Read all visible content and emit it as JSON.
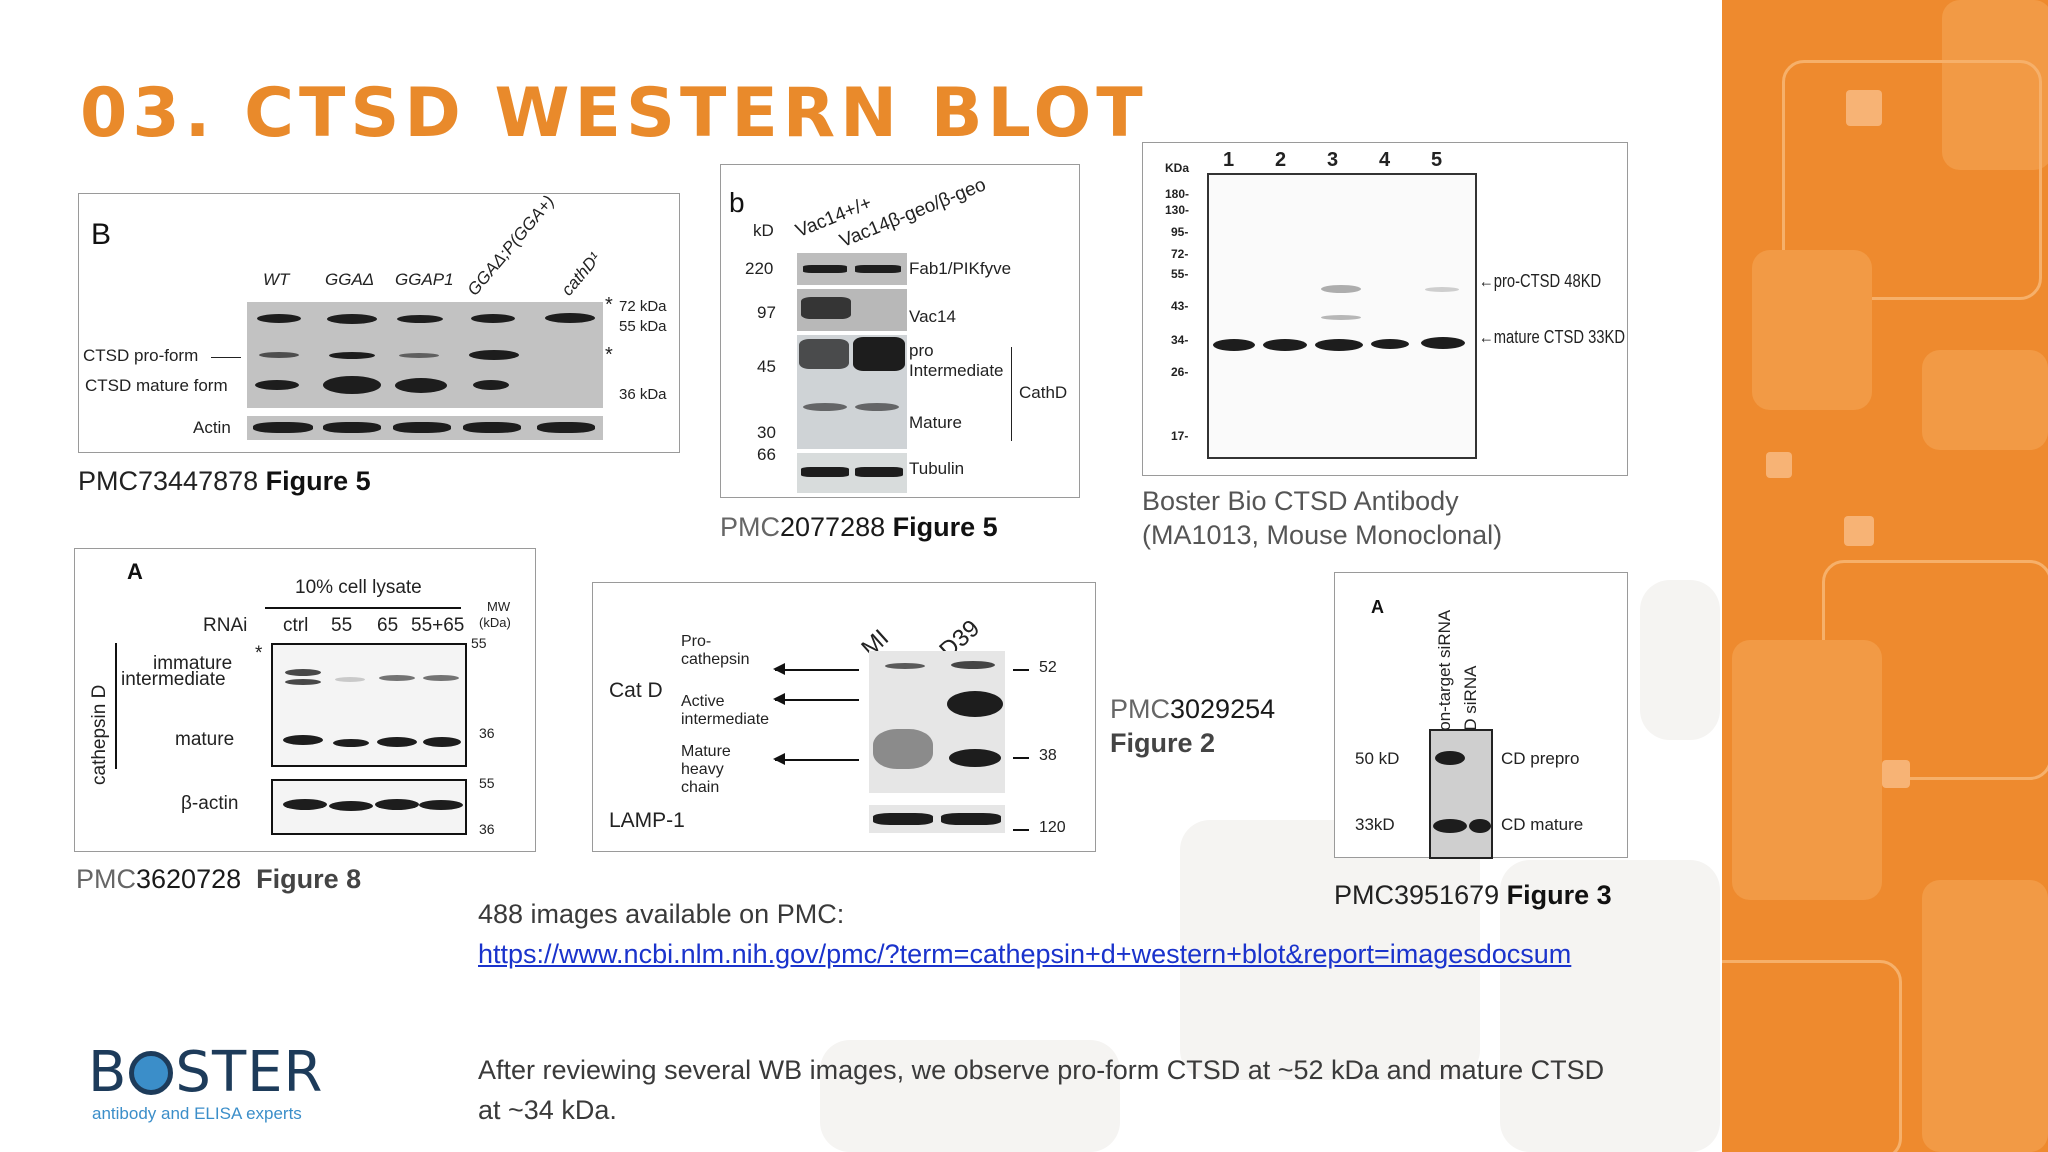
{
  "slide": {
    "title": "03. CTSD WESTERN BLOT",
    "logo_word_pre": "B",
    "logo_word_post": "STER",
    "logo_tagline": "antibody and ELISA experts",
    "colors": {
      "accent": "#e98a2b",
      "panel": "#ee8a2e",
      "link": "#1a33cc"
    }
  },
  "fig1": {
    "letter": "B",
    "lanes": [
      "WT",
      "GGAΔ",
      "GGAP1",
      "GGAΔ;P(GGA+)",
      "cathD¹"
    ],
    "row_labels": [
      "CTSD pro-form",
      "CTSD mature form",
      "Actin"
    ],
    "markers": [
      "72 kDa",
      "55 kDa",
      "36 kDa"
    ],
    "star": "*",
    "caption_id": "PMC73447878",
    "caption_fig": "Figure 5"
  },
  "fig2": {
    "letter": "b",
    "kd": "kD",
    "lanes": [
      "Vac14+/+",
      "Vac14β-geo/β-geo"
    ],
    "mw": [
      "220",
      "97",
      "45",
      "30",
      "66"
    ],
    "labels": [
      "Fab1/PIKfyve",
      "Vac14",
      "pro",
      "Intermediate",
      "Mature",
      "Tubulin"
    ],
    "group": "CathD",
    "caption_pre": "PMC",
    "caption_id": "2077288",
    "caption_fig": "Figure 5"
  },
  "fig3": {
    "kda": "KDa",
    "lanes": [
      "1",
      "2",
      "3",
      "4",
      "5"
    ],
    "mw": [
      "180-",
      "130-",
      "95-",
      "72-",
      "55-",
      "43-",
      "34-",
      "26-",
      "17-"
    ],
    "labels": [
      "←pro-CTSD 48KD",
      "←mature CTSD 33KD"
    ],
    "caption_line1": "Boster Bio CTSD Antibody",
    "caption_line2": "(MA1013, Mouse Monoclonal)"
  },
  "fig4": {
    "letter": "A",
    "header": "10% cell lysate",
    "rnai": "RNAi",
    "lanes": [
      "ctrl",
      "55",
      "65",
      "55+65"
    ],
    "mw_title": "MW",
    "mw_unit": "(kDa)",
    "mw": [
      "55",
      "36",
      "55",
      "36"
    ],
    "side_label": "cathepsin D",
    "labels": [
      "immature",
      "intermediate",
      "mature",
      "β-actin"
    ],
    "star": "*",
    "caption_pre": "PMC",
    "caption_id": "3620728",
    "caption_fig": "Figure 8"
  },
  "fig5": {
    "lanes": [
      "MI",
      "D39"
    ],
    "group": "Cat D",
    "labels": [
      "Pro-",
      "cathepsin",
      "Active",
      "intermediate",
      "Mature",
      "heavy",
      "chain",
      "LAMP-1"
    ],
    "mw": [
      "52",
      "38",
      "120"
    ],
    "caption_pre": "PMC",
    "caption_id": "3029254",
    "caption_fig": "Figure 2"
  },
  "fig6": {
    "letter": "A",
    "lanes": [
      "Non-target siRNA",
      "CD siRNA"
    ],
    "mw": [
      "50 kD",
      "33kD"
    ],
    "labels": [
      "CD prepro",
      "CD mature"
    ],
    "caption_id": "PMC3951679",
    "caption_fig": "Figure 3"
  },
  "text": {
    "available": "488 images available on PMC:",
    "link": "https://www.ncbi.nlm.nih.gov/pmc/?term=cathepsin+d+western+blot&report=imagesdocsum",
    "summary": "After reviewing several WB images, we observe pro-form CTSD at ~52 kDa and mature CTSD at ~34 kDa."
  }
}
